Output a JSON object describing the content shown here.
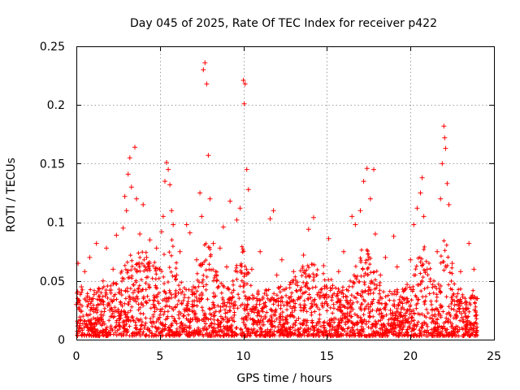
{
  "chart_data": {
    "type": "scatter",
    "title": "Day 045 of 2025, Rate Of TEC Index for receiver p422",
    "xlabel": "GPS time / hours",
    "ylabel": "ROTI / TECUs",
    "xlim": [
      0,
      25
    ],
    "ylim": [
      0,
      0.25
    ],
    "xticks": [
      0,
      5,
      10,
      15,
      20,
      25
    ],
    "xtick_labels": [
      "0",
      "5",
      "10",
      "15",
      "20",
      "25"
    ],
    "yticks": [
      0,
      0.05,
      0.1,
      0.15,
      0.2,
      0.25
    ],
    "ytick_labels": [
      "0",
      "0.05",
      "0.1",
      "0.15",
      "0.2",
      "0.25"
    ],
    "grid": true,
    "marker": "+",
    "series": [
      {
        "name": "ROTI",
        "color": "#ff0000",
        "points": [
          [
            0.0,
            0.03
          ],
          [
            0.1,
            0.065
          ],
          [
            0.2,
            0.012
          ],
          [
            0.3,
            0.045
          ],
          [
            0.4,
            0.02
          ],
          [
            0.5,
            0.058
          ],
          [
            0.7,
            0.01
          ],
          [
            0.8,
            0.07
          ],
          [
            1.0,
            0.035
          ],
          [
            1.2,
            0.082
          ],
          [
            1.4,
            0.015
          ],
          [
            1.6,
            0.05
          ],
          [
            1.8,
            0.078
          ],
          [
            2.0,
            0.025
          ],
          [
            2.2,
            0.06
          ],
          [
            2.4,
            0.089
          ],
          [
            2.6,
            0.018
          ],
          [
            2.8,
            0.095
          ],
          [
            2.9,
            0.122
          ],
          [
            3.0,
            0.11
          ],
          [
            3.1,
            0.141
          ],
          [
            3.2,
            0.155
          ],
          [
            3.3,
            0.13
          ],
          [
            3.4,
            0.04
          ],
          [
            3.5,
            0.164
          ],
          [
            3.6,
            0.12
          ],
          [
            3.8,
            0.09
          ],
          [
            4.0,
            0.115
          ],
          [
            4.2,
            0.07
          ],
          [
            4.4,
            0.085
          ],
          [
            4.6,
            0.03
          ],
          [
            4.8,
            0.078
          ],
          [
            5.0,
            0.06
          ],
          [
            5.1,
            0.092
          ],
          [
            5.2,
            0.105
          ],
          [
            5.3,
            0.135
          ],
          [
            5.4,
            0.151
          ],
          [
            5.5,
            0.145
          ],
          [
            5.6,
            0.132
          ],
          [
            5.7,
            0.11
          ],
          [
            5.8,
            0.098
          ],
          [
            6.0,
            0.055
          ],
          [
            6.2,
            0.075
          ],
          [
            6.4,
            0.02
          ],
          [
            6.6,
            0.098
          ],
          [
            6.8,
            0.091
          ],
          [
            7.0,
            0.045
          ],
          [
            7.2,
            0.068
          ],
          [
            7.4,
            0.125
          ],
          [
            7.5,
            0.105
          ],
          [
            7.6,
            0.23
          ],
          [
            7.7,
            0.236
          ],
          [
            7.8,
            0.218
          ],
          [
            7.9,
            0.157
          ],
          [
            8.0,
            0.12
          ],
          [
            8.2,
            0.082
          ],
          [
            8.4,
            0.05
          ],
          [
            8.6,
            0.078
          ],
          [
            8.8,
            0.096
          ],
          [
            9.0,
            0.062
          ],
          [
            9.2,
            0.118
          ],
          [
            9.4,
            0.03
          ],
          [
            9.6,
            0.102
          ],
          [
            9.8,
            0.112
          ],
          [
            10.0,
            0.221
          ],
          [
            10.05,
            0.201
          ],
          [
            10.1,
            0.218
          ],
          [
            10.2,
            0.145
          ],
          [
            10.3,
            0.128
          ],
          [
            10.5,
            0.06
          ],
          [
            10.8,
            0.035
          ],
          [
            11.0,
            0.075
          ],
          [
            11.3,
            0.02
          ],
          [
            11.6,
            0.103
          ],
          [
            11.8,
            0.11
          ],
          [
            12.0,
            0.055
          ],
          [
            12.3,
            0.068
          ],
          [
            12.6,
            0.032
          ],
          [
            13.0,
            0.058
          ],
          [
            13.3,
            0.018
          ],
          [
            13.6,
            0.072
          ],
          [
            13.9,
            0.094
          ],
          [
            14.2,
            0.104
          ],
          [
            14.5,
            0.04
          ],
          [
            14.8,
            0.063
          ],
          [
            15.1,
            0.086
          ],
          [
            15.4,
            0.03
          ],
          [
            15.7,
            0.058
          ],
          [
            16.0,
            0.075
          ],
          [
            16.2,
            0.02
          ],
          [
            16.5,
            0.105
          ],
          [
            16.7,
            0.098
          ],
          [
            17.0,
            0.11
          ],
          [
            17.2,
            0.135
          ],
          [
            17.4,
            0.146
          ],
          [
            17.6,
            0.12
          ],
          [
            17.8,
            0.145
          ],
          [
            17.9,
            0.09
          ],
          [
            18.2,
            0.055
          ],
          [
            18.5,
            0.07
          ],
          [
            18.8,
            0.025
          ],
          [
            19.0,
            0.088
          ],
          [
            19.2,
            0.062
          ],
          [
            19.5,
            0.015
          ],
          [
            19.8,
            0.047
          ],
          [
            20.0,
            0.068
          ],
          [
            20.2,
            0.098
          ],
          [
            20.4,
            0.112
          ],
          [
            20.6,
            0.125
          ],
          [
            20.7,
            0.138
          ],
          [
            20.8,
            0.105
          ],
          [
            21.0,
            0.06
          ],
          [
            21.3,
            0.025
          ],
          [
            21.6,
            0.075
          ],
          [
            21.8,
            0.12
          ],
          [
            21.9,
            0.15
          ],
          [
            22.0,
            0.182
          ],
          [
            22.05,
            0.172
          ],
          [
            22.1,
            0.163
          ],
          [
            22.2,
            0.133
          ],
          [
            22.3,
            0.115
          ],
          [
            22.5,
            0.065
          ],
          [
            22.8,
            0.03
          ],
          [
            23.0,
            0.058
          ],
          [
            23.3,
            0.02
          ],
          [
            23.5,
            0.082
          ],
          [
            23.8,
            0.06
          ],
          [
            24.0,
            0.035
          ]
        ]
      }
    ]
  }
}
